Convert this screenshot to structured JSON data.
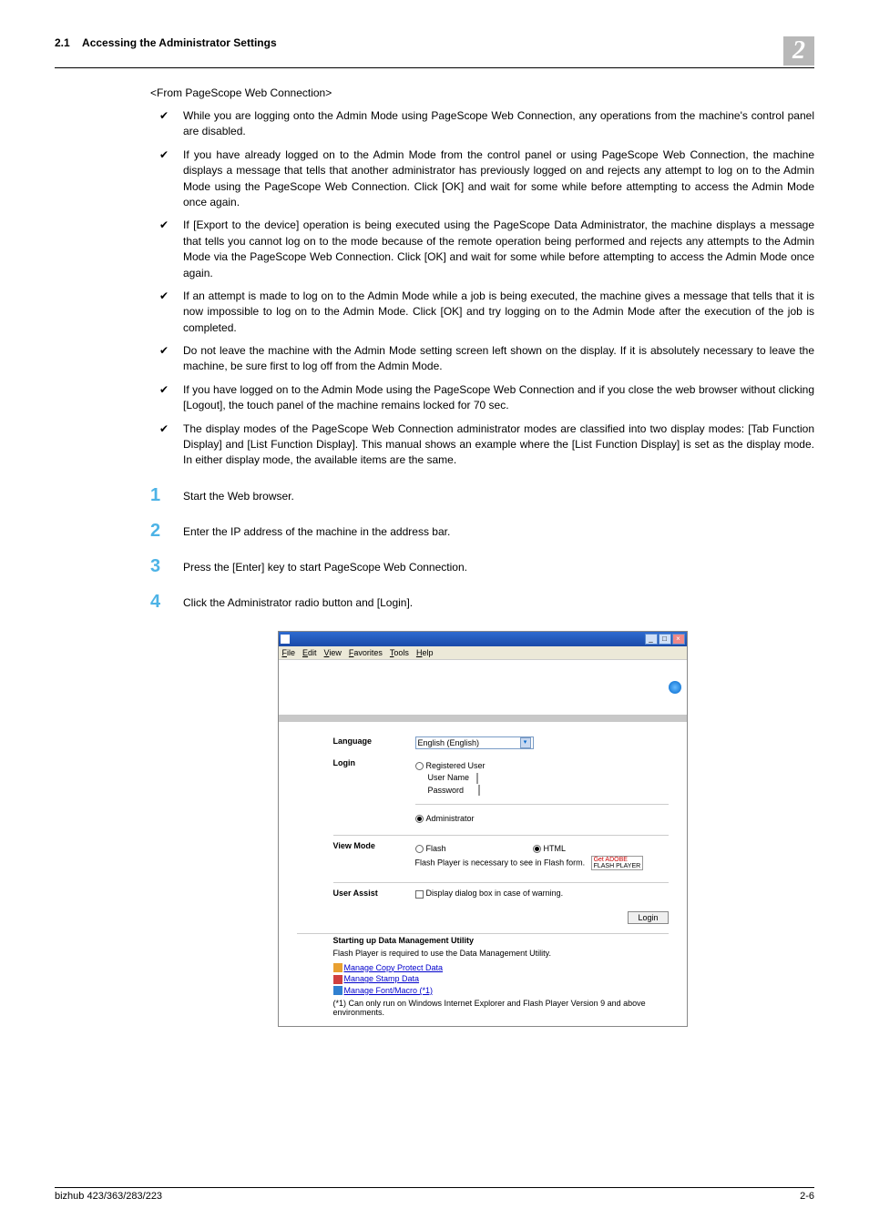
{
  "header": {
    "section": "2.1",
    "title": "Accessing the Administrator Settings",
    "chapter": "2"
  },
  "intro": "<From PageScope Web Connection>",
  "bullets": [
    "While you are logging onto the Admin Mode using PageScope Web Connection, any operations from the machine's control panel are disabled.",
    "If you have already logged on to the Admin Mode from the control panel or using PageScope Web Connection, the machine displays a message that tells that another administrator has previously logged on and rejects any attempt to log on to the Admin Mode using the PageScope Web Connection. Click [OK] and wait for some while before attempting to access the Admin Mode once again.",
    "If [Export to the device] operation is being executed using the PageScope Data Administrator, the machine displays a message that tells you cannot log on to the mode because of the remote operation being performed and rejects any attempts to the Admin Mode via the PageScope Web Connection. Click [OK] and wait for some while before attempting to access the Admin Mode once again.",
    "If an attempt is made to log on to the Admin Mode while a job is being executed, the machine gives a message that tells that it is now impossible to log on to the Admin Mode. Click [OK] and try logging on to the Admin Mode after the execution of the job is completed.",
    "Do not leave the machine with the Admin Mode setting screen left shown on the display. If it is absolutely necessary to leave the machine, be sure first to log off from the Admin Mode.",
    "If you have logged on to the Admin Mode using the PageScope Web Connection and if you close the web browser without clicking [Logout], the touch panel of the machine remains locked for 70 sec.",
    "The display modes of the PageScope Web Connection administrator modes are classified into two display modes: [Tab Function Display] and [List Function Display]. This manual shows an example where the [List Function Display] is set as the display mode. In either display mode, the available items are the same."
  ],
  "steps": [
    "Start the Web browser.",
    "Enter the IP address of the machine in the address bar.",
    "Press the [Enter] key to start PageScope Web Connection.",
    "Click the Administrator radio button and [Login]."
  ],
  "window": {
    "menus": [
      "File",
      "Edit",
      "View",
      "Favorites",
      "Tools",
      "Help"
    ],
    "form": {
      "language_label": "Language",
      "language_value": "English (English)",
      "login_label": "Login",
      "registered_user": "Registered User",
      "user_name": "User Name",
      "password": "Password",
      "administrator": "Administrator",
      "viewmode_label": "View Mode",
      "flash": "Flash",
      "html": "HTML",
      "flash_note": "Flash Player is necessary to see in Flash form.",
      "flash_badge_top": "Get ADOBE",
      "flash_badge_bottom": "FLASH PLAYER",
      "userassist_label": "User Assist",
      "userassist_text": "Display dialog box in case of warning.",
      "login_btn": "Login"
    },
    "dm": {
      "title": "Starting up Data Management Utility",
      "text": "Flash Player is required to use the Data Management Utility.",
      "links": [
        {
          "label": "Manage Copy Protect Data",
          "icon_color": "#e8a030"
        },
        {
          "label": "Manage Stamp Data",
          "icon_color": "#d04040"
        },
        {
          "label": "Manage Font/Macro (*1)",
          "icon_color": "#3080d0"
        }
      ],
      "note": "(*1) Can only run on Windows Internet Explorer and Flash Player Version 9 and above environments."
    }
  },
  "footer": {
    "left": "bizhub 423/363/283/223",
    "right": "2-6"
  },
  "colors": {
    "chapter_bg": "#b8b8b8",
    "step_num": "#4db3e6",
    "title_bar_start": "#2e6bd0",
    "title_bar_end": "#1a4aa8"
  }
}
